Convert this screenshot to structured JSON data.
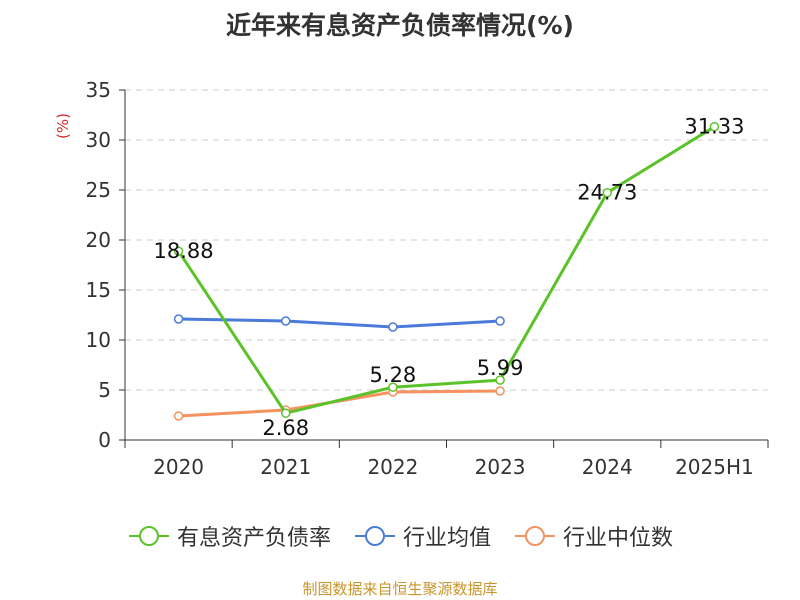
{
  "title": "近年来有息资产负债率情况(%)",
  "source": "制图数据来自恒生聚源数据库",
  "colors": {
    "debt_ratio": "#5bc32a",
    "industry_avg": "#4a7bd8",
    "industry_median": "#f5925f",
    "source_text": "#c9962c",
    "unit_text": "#d62c2c",
    "grid": "#cccccc",
    "axis": "#333333"
  },
  "chart_data": {
    "type": "line",
    "title": "近年来有息资产负债率情况(%)",
    "ylabel": "(%)",
    "xlabel": "",
    "categories": [
      "2020",
      "2021",
      "2022",
      "2023",
      "2024",
      "2025H1"
    ],
    "ylim": [
      0,
      35
    ],
    "yticks": [
      0,
      5,
      10,
      15,
      20,
      25,
      30,
      35
    ],
    "grid": true,
    "legend_position": "bottom",
    "series": [
      {
        "name": "有息资产负债率",
        "key": "debt_ratio",
        "values": [
          18.88,
          2.68,
          5.28,
          5.99,
          24.73,
          31.33
        ],
        "labels": [
          "18.88",
          "2.68",
          "5.28",
          "5.99",
          "24.73",
          "31.33"
        ]
      },
      {
        "name": "行业均值",
        "key": "industry_avg",
        "values": [
          12.1,
          11.9,
          11.3,
          11.9,
          null,
          null
        ]
      },
      {
        "name": "行业中位数",
        "key": "industry_median",
        "values": [
          2.4,
          3.0,
          4.8,
          4.9,
          null,
          null
        ]
      }
    ]
  }
}
